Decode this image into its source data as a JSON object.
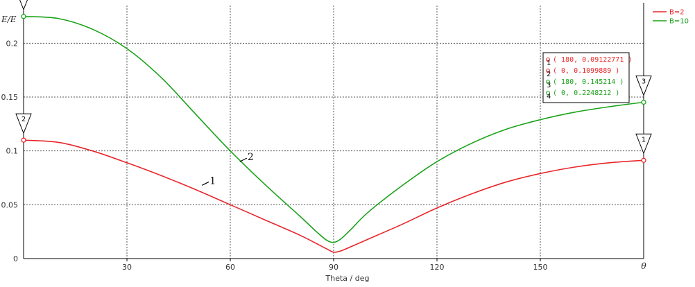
{
  "chart_data": {
    "type": "line",
    "xlabel": "Theta / deg",
    "ylabel": "E/E",
    "x_end_label": "θ",
    "xlim": [
      0,
      180
    ],
    "ylim": [
      0,
      0.235
    ],
    "x_ticks": [
      30,
      60,
      90,
      120,
      150
    ],
    "y_ticks": [
      0,
      0.05,
      0.1,
      0.15,
      0.2
    ],
    "y_tick_labels": [
      "0",
      "0.05",
      "0.1",
      "0.15",
      "0.2"
    ],
    "grid": true,
    "legend_position": "top-right",
    "series": [
      {
        "name": "B=2",
        "color": "#e8262a",
        "label": "1",
        "x": [
          0,
          10,
          20,
          30,
          40,
          50,
          60,
          70,
          80,
          85,
          88,
          90,
          92,
          95,
          100,
          110,
          120,
          130,
          140,
          150,
          160,
          170,
          180
        ],
        "y": [
          0.1099889,
          0.108,
          0.1,
          0.089,
          0.077,
          0.064,
          0.05,
          0.036,
          0.022,
          0.014,
          0.009,
          0.006,
          0.007,
          0.011,
          0.018,
          0.032,
          0.047,
          0.06,
          0.071,
          0.079,
          0.085,
          0.089,
          0.09122771
        ]
      },
      {
        "name": "B=10",
        "color": "#1aa21a",
        "label": "2",
        "x": [
          0,
          10,
          20,
          30,
          40,
          50,
          60,
          70,
          80,
          85,
          88,
          90,
          92,
          95,
          100,
          110,
          120,
          130,
          140,
          150,
          160,
          170,
          180
        ],
        "y": [
          0.2248212,
          0.223,
          0.213,
          0.195,
          0.168,
          0.134,
          0.1,
          0.069,
          0.04,
          0.025,
          0.017,
          0.015,
          0.018,
          0.027,
          0.043,
          0.068,
          0.09,
          0.107,
          0.12,
          0.129,
          0.136,
          0.141,
          0.145214
        ]
      }
    ],
    "markers": [
      {
        "id": "1",
        "series": 0,
        "x": 180,
        "y": 0.09122771,
        "text": "( 180, 0.09122771 )"
      },
      {
        "id": "2",
        "series": 0,
        "x": 0,
        "y": 0.1099889,
        "text": "( 0, 0.1099889 )"
      },
      {
        "id": "3",
        "series": 1,
        "x": 180,
        "y": 0.145214,
        "text": "( 180, 0.145214 )"
      },
      {
        "id": "4",
        "series": 1,
        "x": 0,
        "y": 0.2248212,
        "text": "( 0, 0.2248212 )"
      }
    ]
  }
}
